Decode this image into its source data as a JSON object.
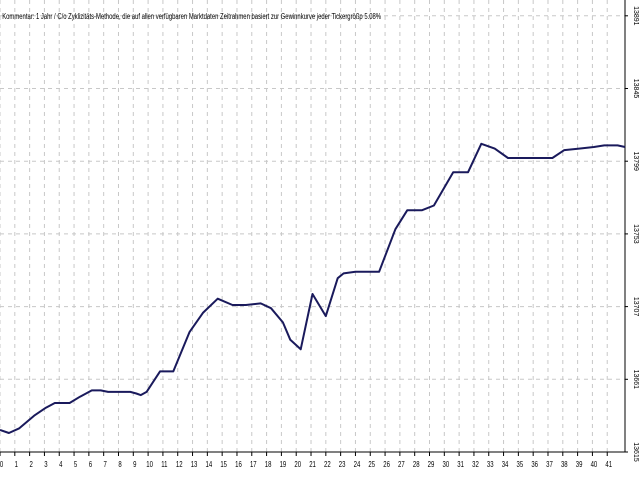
{
  "chart_data": {
    "type": "line",
    "title": "Kommentar: 1 Jahr / C/o Zyklizitäts-Methode, die auf allen verfügbaren Marktdaten Zeitrahmen basiert zur Gewinnkurve jeder Tickergrößp 5.08%",
    "xlabel": "",
    "ylabel": "",
    "colors": {
      "line": "#1a1a5c",
      "grid": "#c8c8c8",
      "background": "#ffffff"
    },
    "grid": true,
    "x_ticks": [
      "0",
      "1",
      "2",
      "3",
      "4",
      "5",
      "6",
      "7",
      "8",
      "9",
      "10",
      "11",
      "12",
      "13",
      "14",
      "15",
      "16",
      "17",
      "18",
      "19",
      "20",
      "21",
      "22",
      "23",
      "24",
      "25",
      "26",
      "27",
      "28",
      "29",
      "30",
      "31",
      "32",
      "33",
      "34",
      "35",
      "36",
      "37",
      "38",
      "39",
      "40",
      "41"
    ],
    "y_ticks": [
      "13615",
      "13661",
      "13707",
      "13753",
      "13799",
      "13845",
      "13891"
    ],
    "xlim": [
      0,
      42.2
    ],
    "ylim": [
      13615,
      13901
    ],
    "series": [
      {
        "values": [
          [
            0,
            13629
          ],
          [
            0.6,
            13627
          ],
          [
            1.3,
            13630
          ],
          [
            2.3,
            13638
          ],
          [
            3.1,
            13643
          ],
          [
            3.7,
            13646
          ],
          [
            4.7,
            13646
          ],
          [
            5.4,
            13650
          ],
          [
            6.2,
            13654
          ],
          [
            6.8,
            13654
          ],
          [
            7.3,
            13653
          ],
          [
            8.8,
            13653
          ],
          [
            9.2,
            13652
          ],
          [
            9.5,
            13651
          ],
          [
            9.9,
            13653
          ],
          [
            10.8,
            13666
          ],
          [
            11.7,
            13666
          ],
          [
            12.8,
            13691
          ],
          [
            13.7,
            13703
          ],
          [
            14.7,
            13712
          ],
          [
            15.7,
            13708
          ],
          [
            16.6,
            13708
          ],
          [
            17.6,
            13709
          ],
          [
            18.3,
            13706
          ],
          [
            19.1,
            13697
          ],
          [
            19.6,
            13686
          ],
          [
            20.3,
            13680
          ],
          [
            21.1,
            13715
          ],
          [
            22.0,
            13701
          ],
          [
            22.8,
            13725
          ],
          [
            23.2,
            13728
          ],
          [
            24.0,
            13729
          ],
          [
            25.6,
            13729
          ],
          [
            26.7,
            13756
          ],
          [
            27.5,
            13768
          ],
          [
            28.5,
            13768
          ],
          [
            29.3,
            13771
          ],
          [
            30.6,
            13792
          ],
          [
            31.6,
            13792
          ],
          [
            32.5,
            13810
          ],
          [
            33.4,
            13807
          ],
          [
            34.3,
            13801
          ],
          [
            35.2,
            13801
          ],
          [
            36.2,
            13801
          ],
          [
            36.9,
            13801
          ],
          [
            37.3,
            13801
          ],
          [
            38.1,
            13806
          ],
          [
            39.1,
            13807
          ],
          [
            40.1,
            13808
          ],
          [
            40.8,
            13809
          ],
          [
            41.7,
            13809
          ],
          [
            42.2,
            13808
          ]
        ]
      }
    ]
  }
}
